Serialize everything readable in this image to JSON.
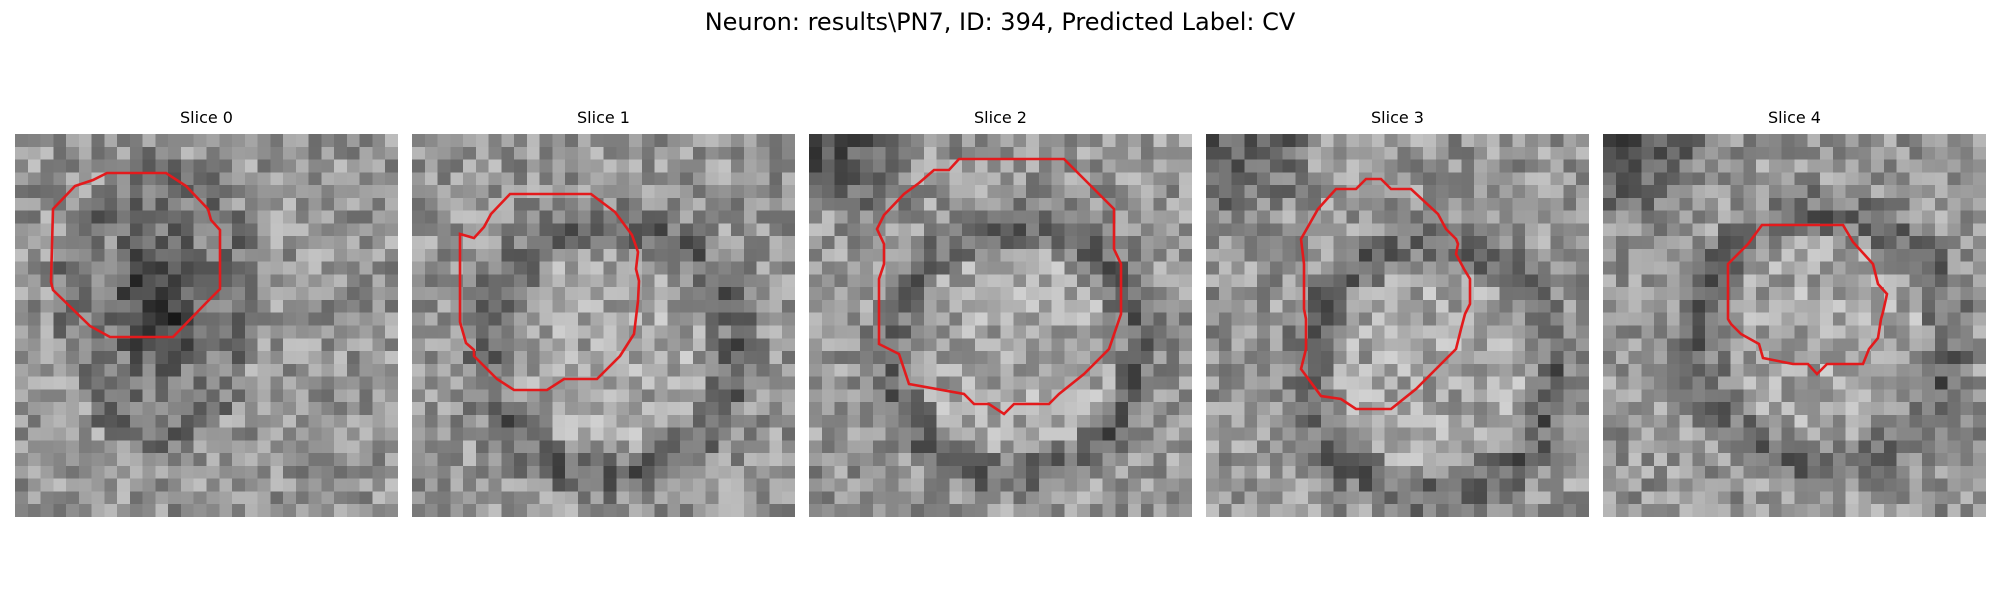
{
  "figure": {
    "title": "Neuron: results\\PN7, ID: 394, Predicted Label: CV",
    "contour_color": "#e31a1c"
  },
  "panels": [
    {
      "title": "Slice 0",
      "seed": 11,
      "kind": "filled",
      "dark_center": [
        0.36,
        0.42
      ]
    },
    {
      "title": "Slice 1",
      "seed": 23,
      "kind": "ring",
      "dark_center": [
        0.5,
        0.55
      ]
    },
    {
      "title": "Slice 2",
      "seed": 37,
      "kind": "ring",
      "dark_center": [
        0.52,
        0.55
      ]
    },
    {
      "title": "Slice 3",
      "seed": 41,
      "kind": "ring",
      "dark_center": [
        0.57,
        0.6
      ]
    },
    {
      "title": "Slice 4",
      "seed": 53,
      "kind": "ring",
      "dark_center": [
        0.56,
        0.52
      ]
    }
  ]
}
